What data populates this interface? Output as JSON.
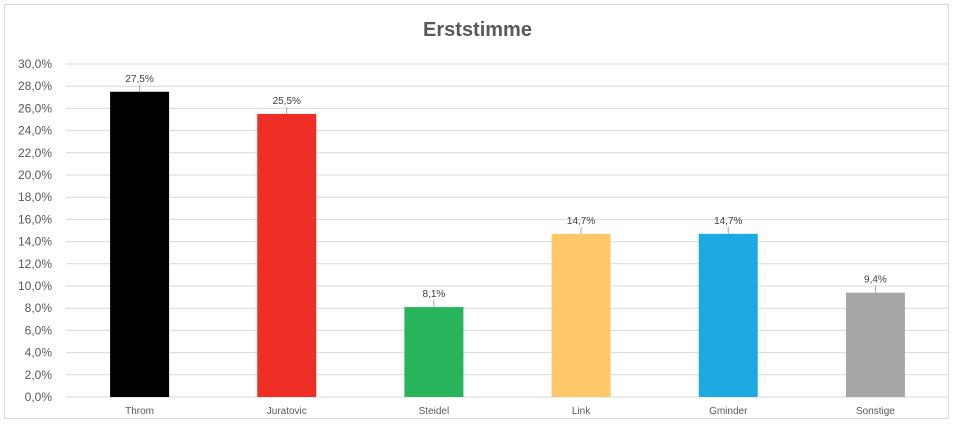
{
  "chart_data": {
    "type": "bar",
    "title": "Erststimme",
    "xlabel": "",
    "ylabel": "",
    "ylim": [
      0,
      30
    ],
    "y_tick_step": 2,
    "categories": [
      "Throm",
      "Juratovic",
      "Steidel",
      "Link",
      "Gminder",
      "Sonstige"
    ],
    "values": [
      27.5,
      25.5,
      8.1,
      14.7,
      14.7,
      9.4
    ],
    "data_labels": [
      "27,5%",
      "25,5%",
      "8,1%",
      "14,7%",
      "14,7%",
      "9,4%"
    ],
    "y_tick_labels": [
      "0,0%",
      "2,0%",
      "4,0%",
      "6,0%",
      "8,0%",
      "10,0%",
      "12,0%",
      "14,0%",
      "16,0%",
      "18,0%",
      "20,0%",
      "22,0%",
      "24,0%",
      "26,0%",
      "28,0%",
      "30,0%"
    ],
    "colors": [
      "#000000",
      "#ee2d24",
      "#27b45a",
      "#fec868",
      "#1da9e2",
      "#a6a6a6"
    ],
    "grid": true,
    "legend": "none"
  }
}
